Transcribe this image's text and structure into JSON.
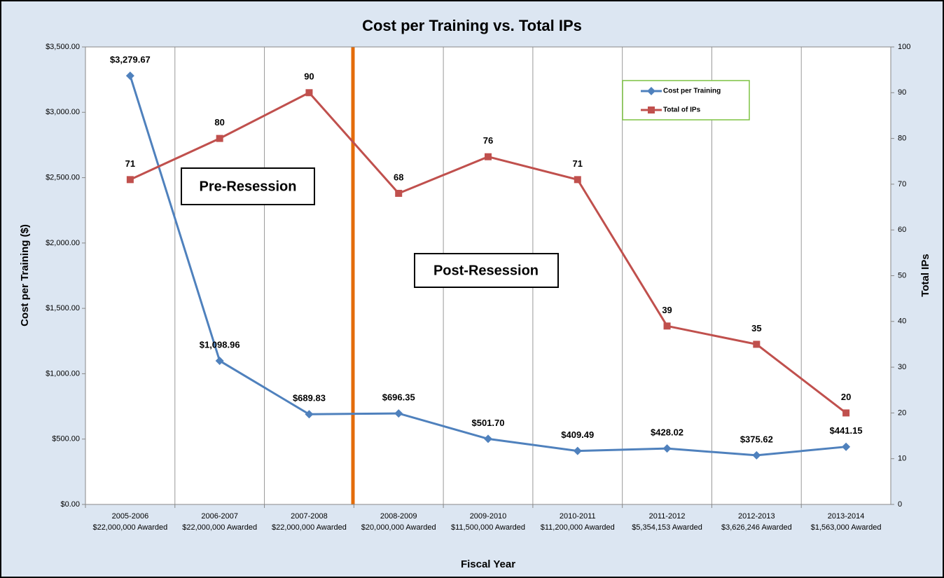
{
  "chart_data": {
    "type": "line",
    "title": "Cost per Training vs. Total IPs",
    "x_label": "Fiscal Year",
    "y_label": "Cost per Training ($)",
    "y2_label": "Total IPs",
    "annotations": [
      "Pre-Resession",
      "Post-Resession"
    ],
    "categories": [
      "2005-2006",
      "2006-2007",
      "2007-2008",
      "2008-2009",
      "2009-2010",
      "2010-2011",
      "2011-2012",
      "2012-2013",
      "2013-2014"
    ],
    "awards": [
      "$22,000,000 Awarded",
      "$22,000,000 Awarded",
      "$22,000,000 Awarded",
      "$20,000,000 Awarded",
      "$11,500,000 Awarded",
      "$11,200,000 Awarded",
      "$5,354,153 Awarded",
      "$3,626,246 Awarded",
      "$1,563,000 Awarded"
    ],
    "series": [
      {
        "name": "Cost per Training",
        "color": "#4f81bd",
        "marker": "diamond",
        "values": [
          3279.67,
          1098.96,
          689.83,
          696.35,
          501.7,
          409.49,
          428.02,
          375.62,
          441.15
        ],
        "value_labels": [
          "$3,279.67",
          "$1,098.96",
          "$689.83",
          "$696.35",
          "$501.70",
          "$409.49",
          "$428.02",
          "$375.62",
          "$441.15"
        ]
      },
      {
        "name": "Total of IPs",
        "color": "#c0504d",
        "marker": "square",
        "axis": "y2",
        "values": [
          71,
          80,
          90,
          68,
          76,
          71,
          39,
          35,
          20
        ]
      }
    ],
    "ylim": [
      0,
      3500
    ],
    "yticks": [
      {
        "value": 0,
        "label": "$0.00"
      },
      {
        "value": 500,
        "label": "$500.00"
      },
      {
        "value": 1000,
        "label": "$1,000.00"
      },
      {
        "value": 1500,
        "label": "$1,500.00"
      },
      {
        "value": 2000,
        "label": "$2,000.00"
      },
      {
        "value": 2500,
        "label": "$2,500.00"
      },
      {
        "value": 3000,
        "label": "$3,000.00"
      },
      {
        "value": 3500,
        "label": "$3,500.00"
      }
    ],
    "y2lim": [
      0,
      100
    ],
    "y2ticks": [
      0,
      10,
      20,
      30,
      40,
      50,
      60,
      70,
      80,
      90,
      100
    ],
    "grid": "vertical",
    "legend": "upper right"
  }
}
